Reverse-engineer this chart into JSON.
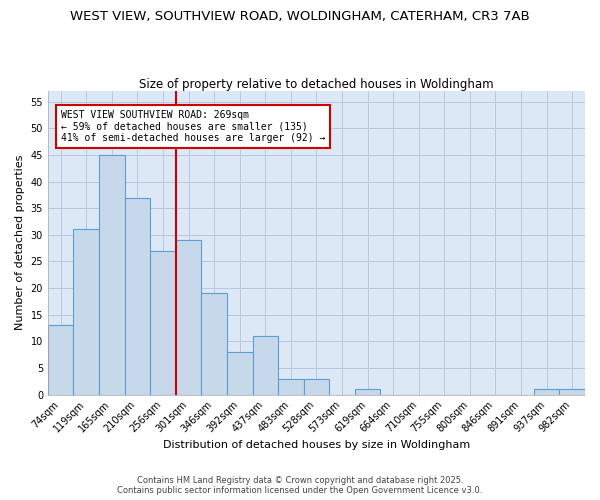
{
  "title_line1": "WEST VIEW, SOUTHVIEW ROAD, WOLDINGHAM, CATERHAM, CR3 7AB",
  "title_line2": "Size of property relative to detached houses in Woldingham",
  "xlabel": "Distribution of detached houses by size in Woldingham",
  "ylabel": "Number of detached properties",
  "categories": [
    "74sqm",
    "119sqm",
    "165sqm",
    "210sqm",
    "256sqm",
    "301sqm",
    "346sqm",
    "392sqm",
    "437sqm",
    "483sqm",
    "528sqm",
    "573sqm",
    "619sqm",
    "664sqm",
    "710sqm",
    "755sqm",
    "800sqm",
    "846sqm",
    "891sqm",
    "937sqm",
    "982sqm"
  ],
  "values": [
    13,
    31,
    45,
    37,
    27,
    29,
    19,
    8,
    11,
    3,
    3,
    0,
    1,
    0,
    0,
    0,
    0,
    0,
    0,
    1,
    1
  ],
  "bar_color": "#c8d8eb",
  "bar_edge_color": "#5a9fd4",
  "red_line_x": 4.5,
  "annotation_text": "WEST VIEW SOUTHVIEW ROAD: 269sqm\n← 59% of detached houses are smaller (135)\n41% of semi-detached houses are larger (92) →",
  "annotation_box_color": "#ffffff",
  "annotation_box_edge_color": "#cc0000",
  "red_line_color": "#cc0000",
  "ylim": [
    0,
    57
  ],
  "yticks": [
    0,
    5,
    10,
    15,
    20,
    25,
    30,
    35,
    40,
    45,
    50,
    55
  ],
  "grid_color": "#b8c8e0",
  "bg_color": "#dce8f5",
  "fig_bg_color": "#ffffff",
  "footer_text": "Contains HM Land Registry data © Crown copyright and database right 2025.\nContains public sector information licensed under the Open Government Licence v3.0.",
  "title_fontsize": 9.5,
  "subtitle_fontsize": 8.5,
  "annot_fontsize": 7,
  "xlabel_fontsize": 8,
  "ylabel_fontsize": 8,
  "tick_fontsize": 7,
  "footer_fontsize": 6
}
